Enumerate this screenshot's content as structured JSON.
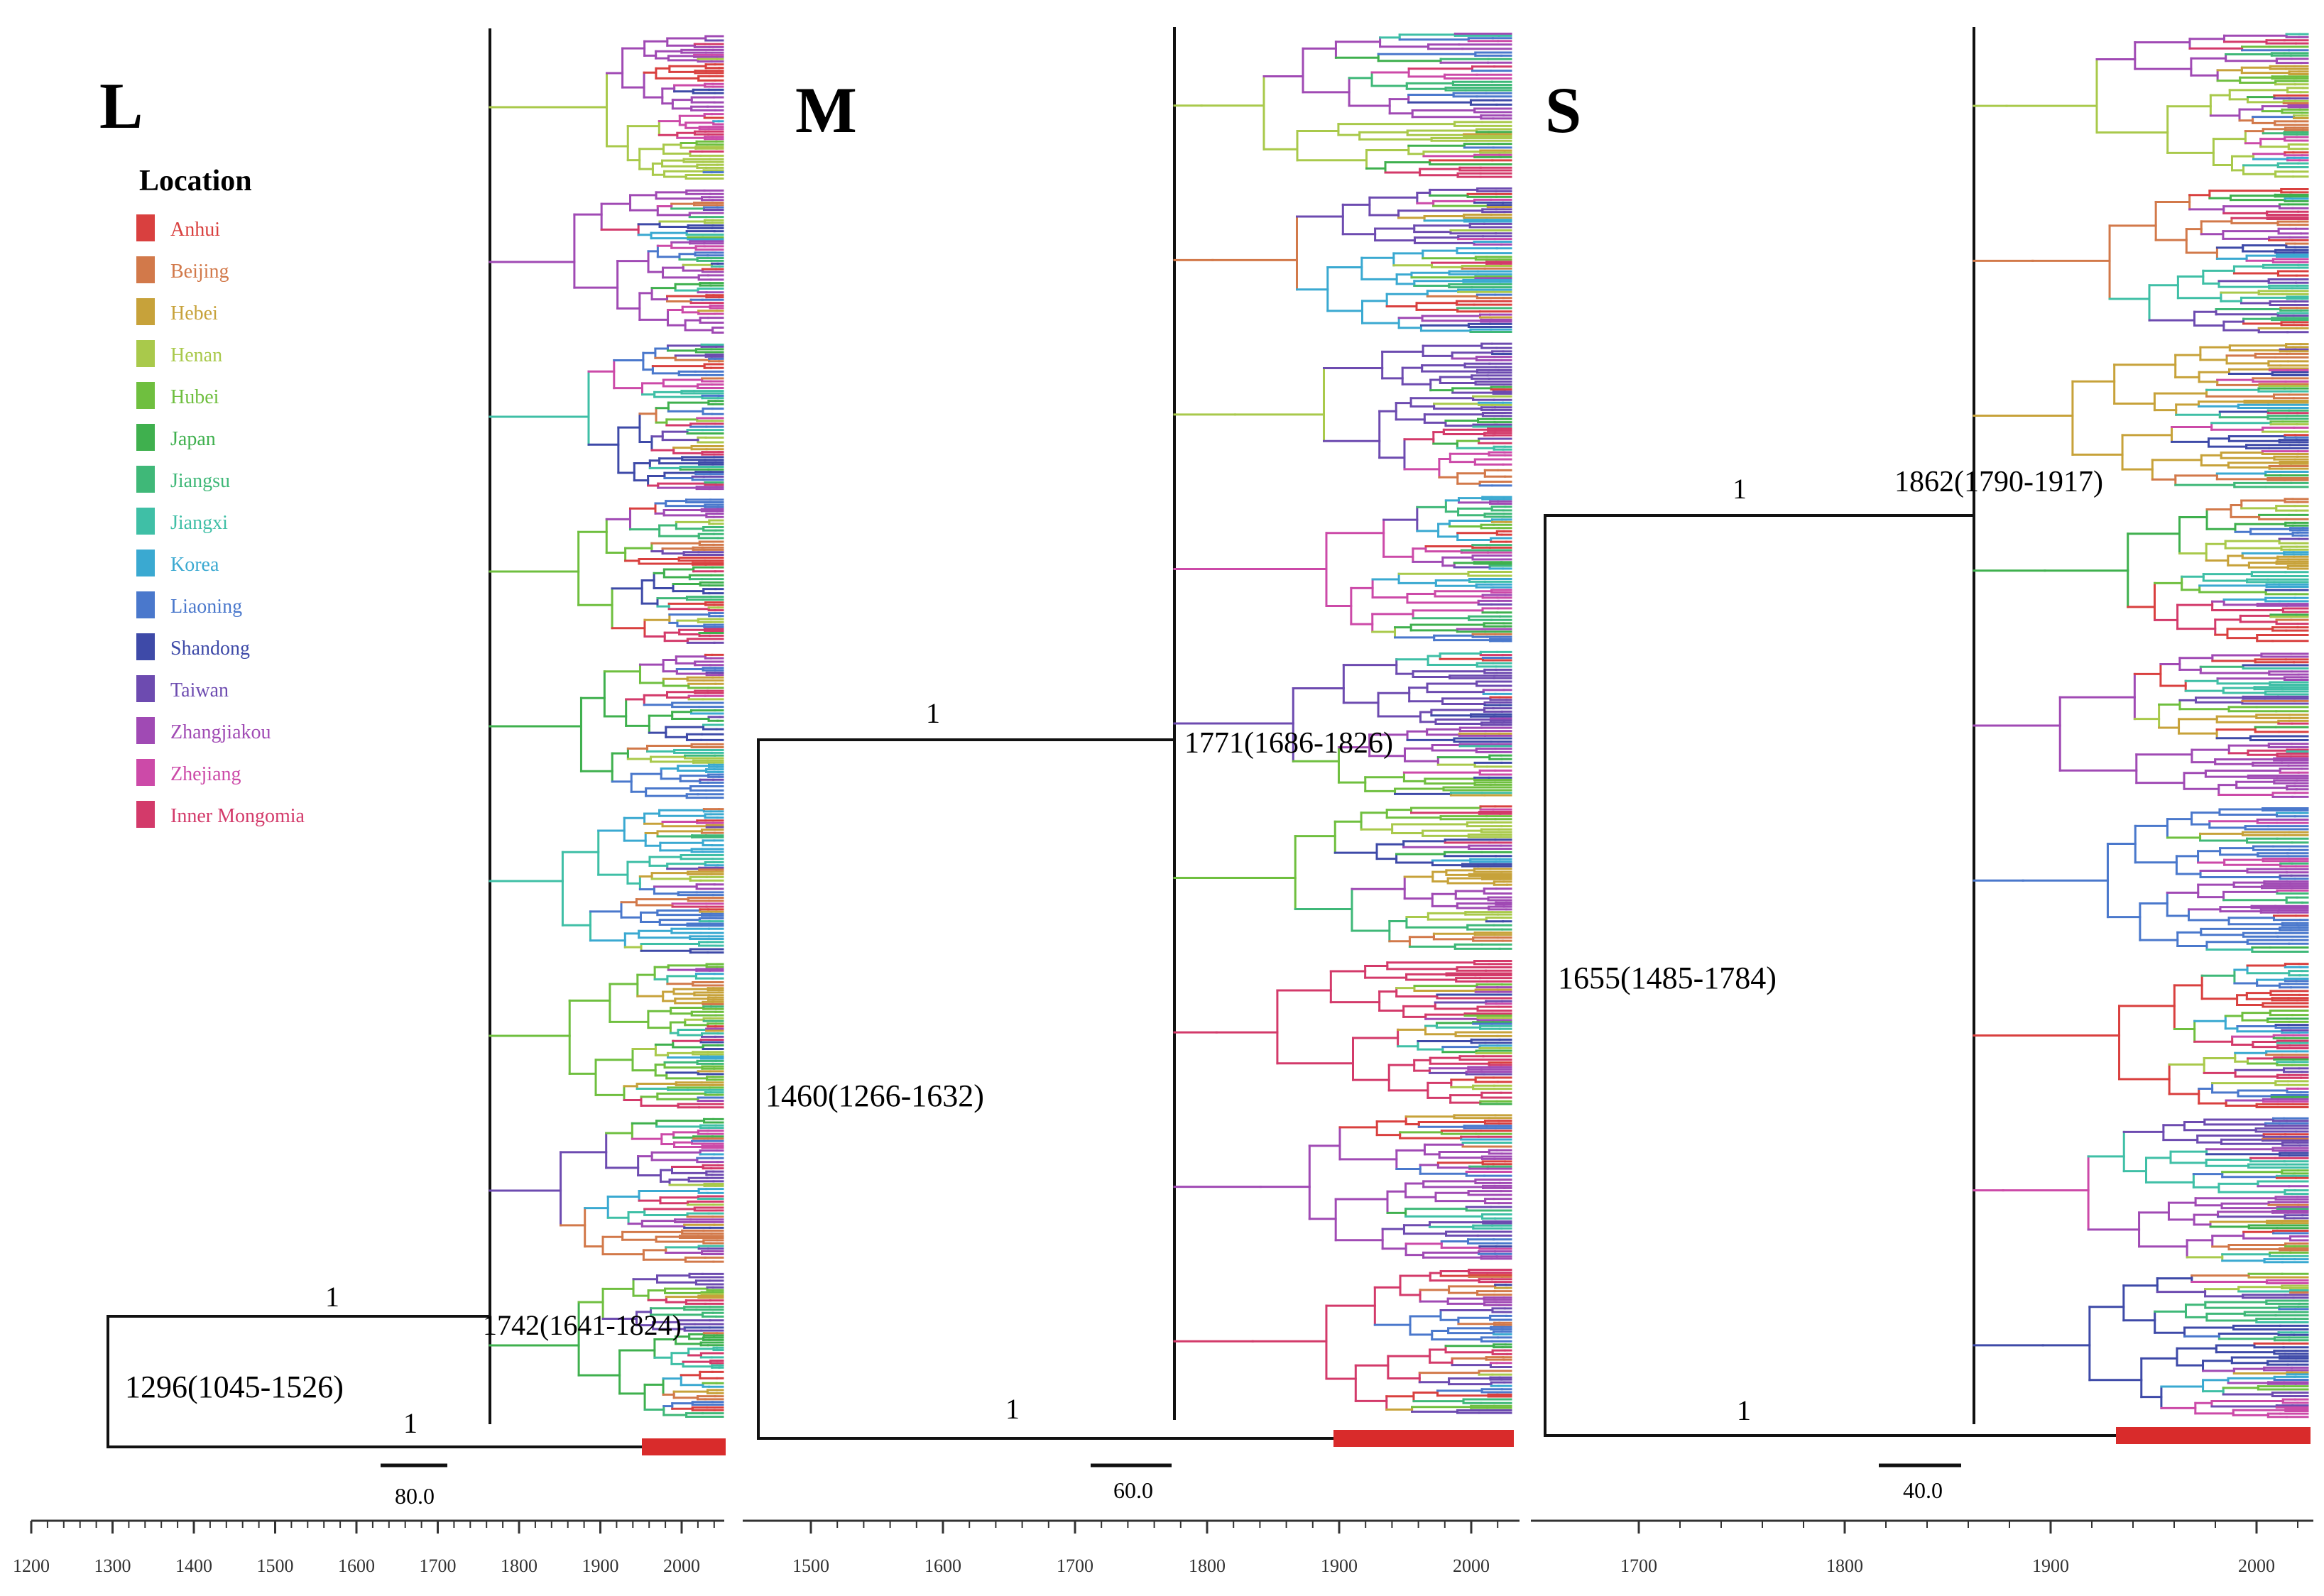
{
  "legend": {
    "title": "Location",
    "items": [
      {
        "label": "Anhui",
        "color": "#d9403f"
      },
      {
        "label": "Beijing",
        "color": "#d2794a"
      },
      {
        "label": "Hebei",
        "color": "#c7a23a"
      },
      {
        "label": "Henan",
        "color": "#a9c94b"
      },
      {
        "label": "Hubei",
        "color": "#6fbf3f"
      },
      {
        "label": "Japan",
        "color": "#3fb04e"
      },
      {
        "label": "Jiangsu",
        "color": "#3fb878"
      },
      {
        "label": "Jiangxi",
        "color": "#3fbfa6"
      },
      {
        "label": "Korea",
        "color": "#3aa9d1"
      },
      {
        "label": "Liaoning",
        "color": "#4a78cc"
      },
      {
        "label": "Shandong",
        "color": "#3e4aa8"
      },
      {
        "label": "Taiwan",
        "color": "#6d4bb0"
      },
      {
        "label": "Zhangjiakou",
        "color": "#a04ab4"
      },
      {
        "label": "Zhejiang",
        "color": "#cc4aa8"
      },
      {
        "label": "Inner Mongomia",
        "color": "#d33a6a"
      }
    ]
  },
  "panels": [
    {
      "letter": "L",
      "root_label": "1296(1045-1526)",
      "root_year": 1296,
      "node_label": "1742(1641-1824)",
      "node_year": 1742,
      "support_upper": "1",
      "support_lower": "1",
      "scale_bar": "80.0",
      "axis": {
        "ticks": [
          "1200",
          "1300",
          "1400",
          "1500",
          "1600",
          "1700",
          "1800",
          "1900",
          "2000"
        ]
      }
    },
    {
      "letter": "M",
      "root_label": "1460(1266-1632)",
      "root_year": 1460,
      "node_label": "1771(1686-1826)",
      "node_year": 1771,
      "support_upper": "1",
      "support_lower": "1",
      "scale_bar": "60.0",
      "axis": {
        "ticks": [
          "1500",
          "1600",
          "1700",
          "1800",
          "1900",
          "2000"
        ]
      }
    },
    {
      "letter": "S",
      "root_label": "1655(1485-1784)",
      "root_year": 1655,
      "node_label": "1862(1790-1917)",
      "node_year": 1862,
      "support_upper": "1",
      "support_lower": "1",
      "scale_bar": "40.0",
      "axis": {
        "ticks": [
          "1700",
          "1800",
          "1900",
          "2000"
        ]
      }
    }
  ],
  "colors": {
    "branch_default": "#111111",
    "axis": "#333333",
    "bar_fill": "#d92b2b"
  }
}
